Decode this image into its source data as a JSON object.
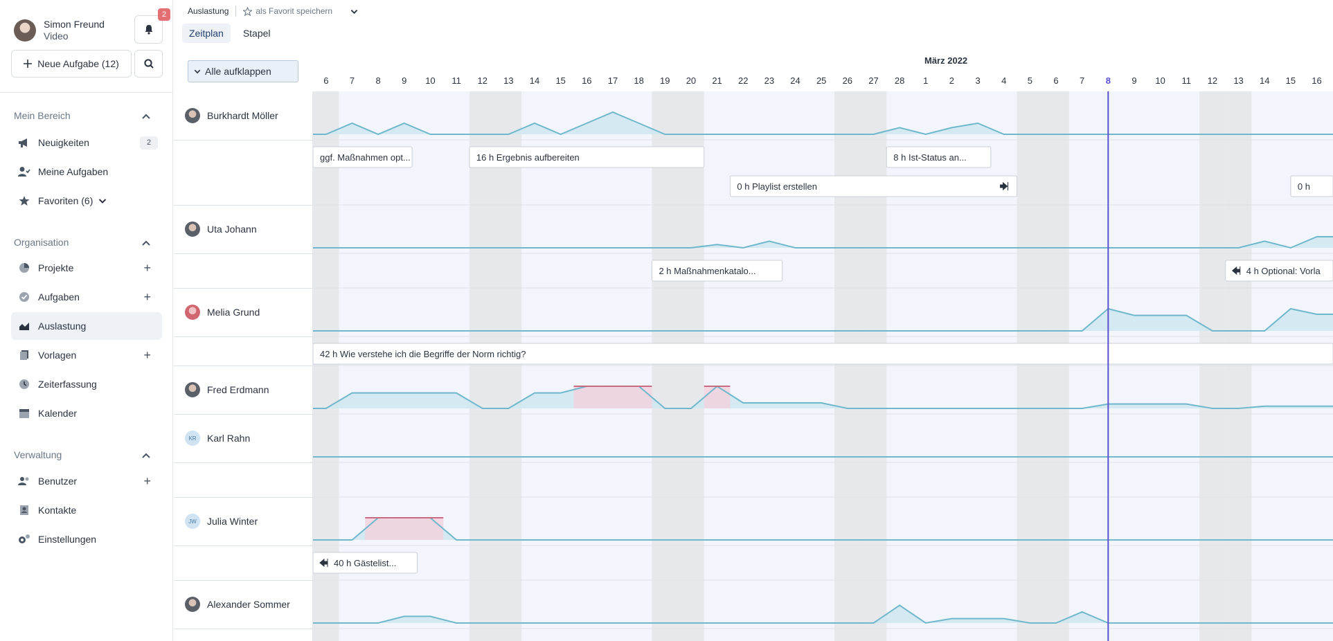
{
  "user": {
    "name": "Simon Freund",
    "role": "Video"
  },
  "notifications": {
    "count": "2"
  },
  "new_task": {
    "label": "Neue Aufgabe (12)"
  },
  "sidebar": {
    "sections": [
      {
        "title": "Mein Bereich"
      },
      {
        "title": "Organisation"
      },
      {
        "title": "Verwaltung"
      }
    ],
    "items": [
      {
        "label": "Neuigkeiten",
        "icon": "megaphone-icon",
        "count": "2"
      },
      {
        "label": "Meine Aufgaben",
        "icon": "person-check-icon"
      },
      {
        "label": "Favoriten (6)",
        "icon": "star-icon"
      },
      {
        "label": "Projekte",
        "icon": "pie-chart-icon"
      },
      {
        "label": "Aufgaben",
        "icon": "check-circle-icon"
      },
      {
        "label": "Auslastung",
        "icon": "area-chart-icon"
      },
      {
        "label": "Vorlagen",
        "icon": "document-copy-icon"
      },
      {
        "label": "Zeiterfassung",
        "icon": "clock-icon"
      },
      {
        "label": "Kalender",
        "icon": "calendar-icon"
      },
      {
        "label": "Benutzer",
        "icon": "users-icon"
      },
      {
        "label": "Kontakte",
        "icon": "contact-card-icon"
      },
      {
        "label": "Einstellungen",
        "icon": "gears-icon"
      }
    ]
  },
  "header": {
    "breadcrumb": "Auslastung",
    "favorite_label": "als Favorit speichern",
    "tabs": [
      "Zeitplan",
      "Stapel"
    ],
    "expand_all": "Alle aufklappen",
    "month": "März 2022"
  },
  "timeline": {
    "days": [
      "6",
      "7",
      "8",
      "9",
      "10",
      "11",
      "12",
      "13",
      "14",
      "15",
      "16",
      "17",
      "18",
      "19",
      "20",
      "21",
      "22",
      "23",
      "24",
      "25",
      "26",
      "27",
      "28",
      "1",
      "2",
      "3",
      "4",
      "5",
      "6",
      "7",
      "8",
      "9",
      "10",
      "11",
      "12",
      "13",
      "14",
      "15",
      "16"
    ],
    "today_index": 30,
    "weekend_indices": [
      0,
      6,
      7,
      13,
      14,
      20,
      21,
      27,
      28,
      34,
      35
    ],
    "colors": {
      "line": "#6fb8cc",
      "fill": "#cfe6f0",
      "over": "#c86b82",
      "over_fill": "#f2cfdc",
      "today": "#5a4fcf",
      "weekend": "#e6e8ec",
      "lane": "#f2f6fc"
    },
    "people": [
      {
        "name": "Burkhardt Möller",
        "avatar": "photo",
        "load": [
          0,
          0.5,
          0,
          0.5,
          0,
          0,
          0,
          0,
          0.5,
          0,
          0.5,
          1,
          0.5,
          0,
          0,
          0,
          0,
          0,
          0,
          0,
          0,
          0,
          0.3,
          0,
          0.3,
          0.5,
          0,
          0,
          0,
          0,
          0,
          0,
          0,
          0,
          0,
          0,
          0,
          0,
          0
        ],
        "over": [],
        "tasks": [
          {
            "hours": "",
            "title": "ggf. Maßnahmen opt...",
            "start": -0.5,
            "end": 3.8,
            "row": 0
          },
          {
            "hours": "16 h",
            "title": "Ergebnis aufbereiten",
            "start": 6,
            "end": 15,
            "row": 0
          },
          {
            "hours": "8 h",
            "title": "Ist-Status an...",
            "start": 22,
            "end": 26,
            "row": 0
          },
          {
            "hours": "0 h",
            "title": "Playlist erstellen",
            "start": 16,
            "end": 27,
            "row": 1,
            "icon": "arrow-right-bar-icon"
          },
          {
            "hours": "0 h",
            "title": "",
            "start": 37.5,
            "end": 40,
            "row": 1
          }
        ]
      },
      {
        "name": "Uta Johann",
        "avatar": "photo",
        "load": [
          0,
          0,
          0,
          0,
          0,
          0,
          0,
          0,
          0,
          0,
          0,
          0,
          0,
          0,
          0,
          0.15,
          0,
          0.3,
          0,
          0,
          0,
          0,
          0,
          0,
          0,
          0,
          0,
          0,
          0,
          0,
          0,
          0,
          0,
          0,
          0,
          0,
          0.3,
          0,
          0.5
        ],
        "over": [],
        "tasks": [
          {
            "hours": "2 h",
            "title": "Maßnahmenkatalo...",
            "start": 13,
            "end": 18,
            "row": 0
          },
          {
            "hours": "4 h",
            "title": "Optional: Vorla",
            "start": 35,
            "end": 40,
            "row": 0,
            "icon": "arrow-left-bar-icon"
          }
        ]
      },
      {
        "name": "Melia Grund",
        "avatar": "photo-red",
        "load": [
          0,
          0,
          0,
          0,
          0,
          0,
          0,
          0,
          0,
          0,
          0,
          0,
          0,
          0,
          0,
          0,
          0,
          0,
          0,
          0,
          0,
          0,
          0,
          0,
          0,
          0,
          0,
          0,
          0,
          0,
          1,
          0.7,
          0.7,
          0.7,
          0,
          0,
          0,
          1,
          0.75
        ],
        "over": [],
        "tasks": [
          {
            "hours": "42 h",
            "title": "Wie verstehe ich die Begriffe der Norm richtig?",
            "start": 0,
            "end": 40,
            "row": 0
          }
        ]
      },
      {
        "name": "Fred Erdmann",
        "avatar": "photo",
        "load": [
          0,
          0.7,
          0.7,
          0.7,
          0.7,
          0.7,
          0,
          0,
          0.7,
          0.7,
          1,
          1,
          1,
          0,
          0,
          1,
          0.25,
          0.25,
          0.25,
          0.25,
          0,
          0,
          0,
          0,
          0,
          0,
          0,
          0,
          0,
          0,
          0.2,
          0.2,
          0.2,
          0.2,
          0,
          0,
          0.1,
          0.1,
          0.1
        ],
        "over": [
          10,
          11,
          12,
          15
        ],
        "tasks": []
      },
      {
        "name": "Karl Rahn",
        "avatar": "KR",
        "load": [
          0,
          0,
          0,
          0,
          0,
          0,
          0,
          0,
          0,
          0,
          0,
          0,
          0,
          0,
          0,
          0,
          0,
          0,
          0,
          0,
          0,
          0,
          0,
          0,
          0,
          0,
          0,
          0,
          0,
          0,
          0,
          0,
          0,
          0,
          0,
          0,
          0,
          0,
          0
        ],
        "over": [],
        "tasks": []
      },
      {
        "name": "Julia Winter",
        "avatar": "JW",
        "load": [
          0,
          0,
          1,
          1,
          1,
          0,
          0,
          0,
          0,
          0,
          0,
          0,
          0,
          0,
          0,
          0,
          0,
          0,
          0,
          0,
          0,
          0,
          0,
          0,
          0,
          0,
          0,
          0,
          0,
          0,
          0,
          0,
          0,
          0,
          0,
          0,
          0,
          0,
          0
        ],
        "over": [
          2,
          3,
          4
        ],
        "tasks": [
          {
            "hours": "40 h",
            "title": "Gästelist...",
            "start": 0,
            "end": 4,
            "row": 0,
            "icon": "arrow-left-bar-icon"
          }
        ]
      },
      {
        "name": "Alexander Sommer",
        "avatar": "photo",
        "load": [
          0,
          0,
          0,
          0.3,
          0.3,
          0,
          0,
          0,
          0,
          0,
          0,
          0,
          0,
          0,
          0,
          0,
          0,
          0,
          0,
          0,
          0,
          0,
          0.8,
          0,
          0.2,
          0.2,
          0.2,
          0,
          0,
          0.5,
          0,
          0,
          0,
          0,
          0,
          0,
          0,
          0,
          0
        ],
        "over": [],
        "tasks": []
      }
    ]
  }
}
